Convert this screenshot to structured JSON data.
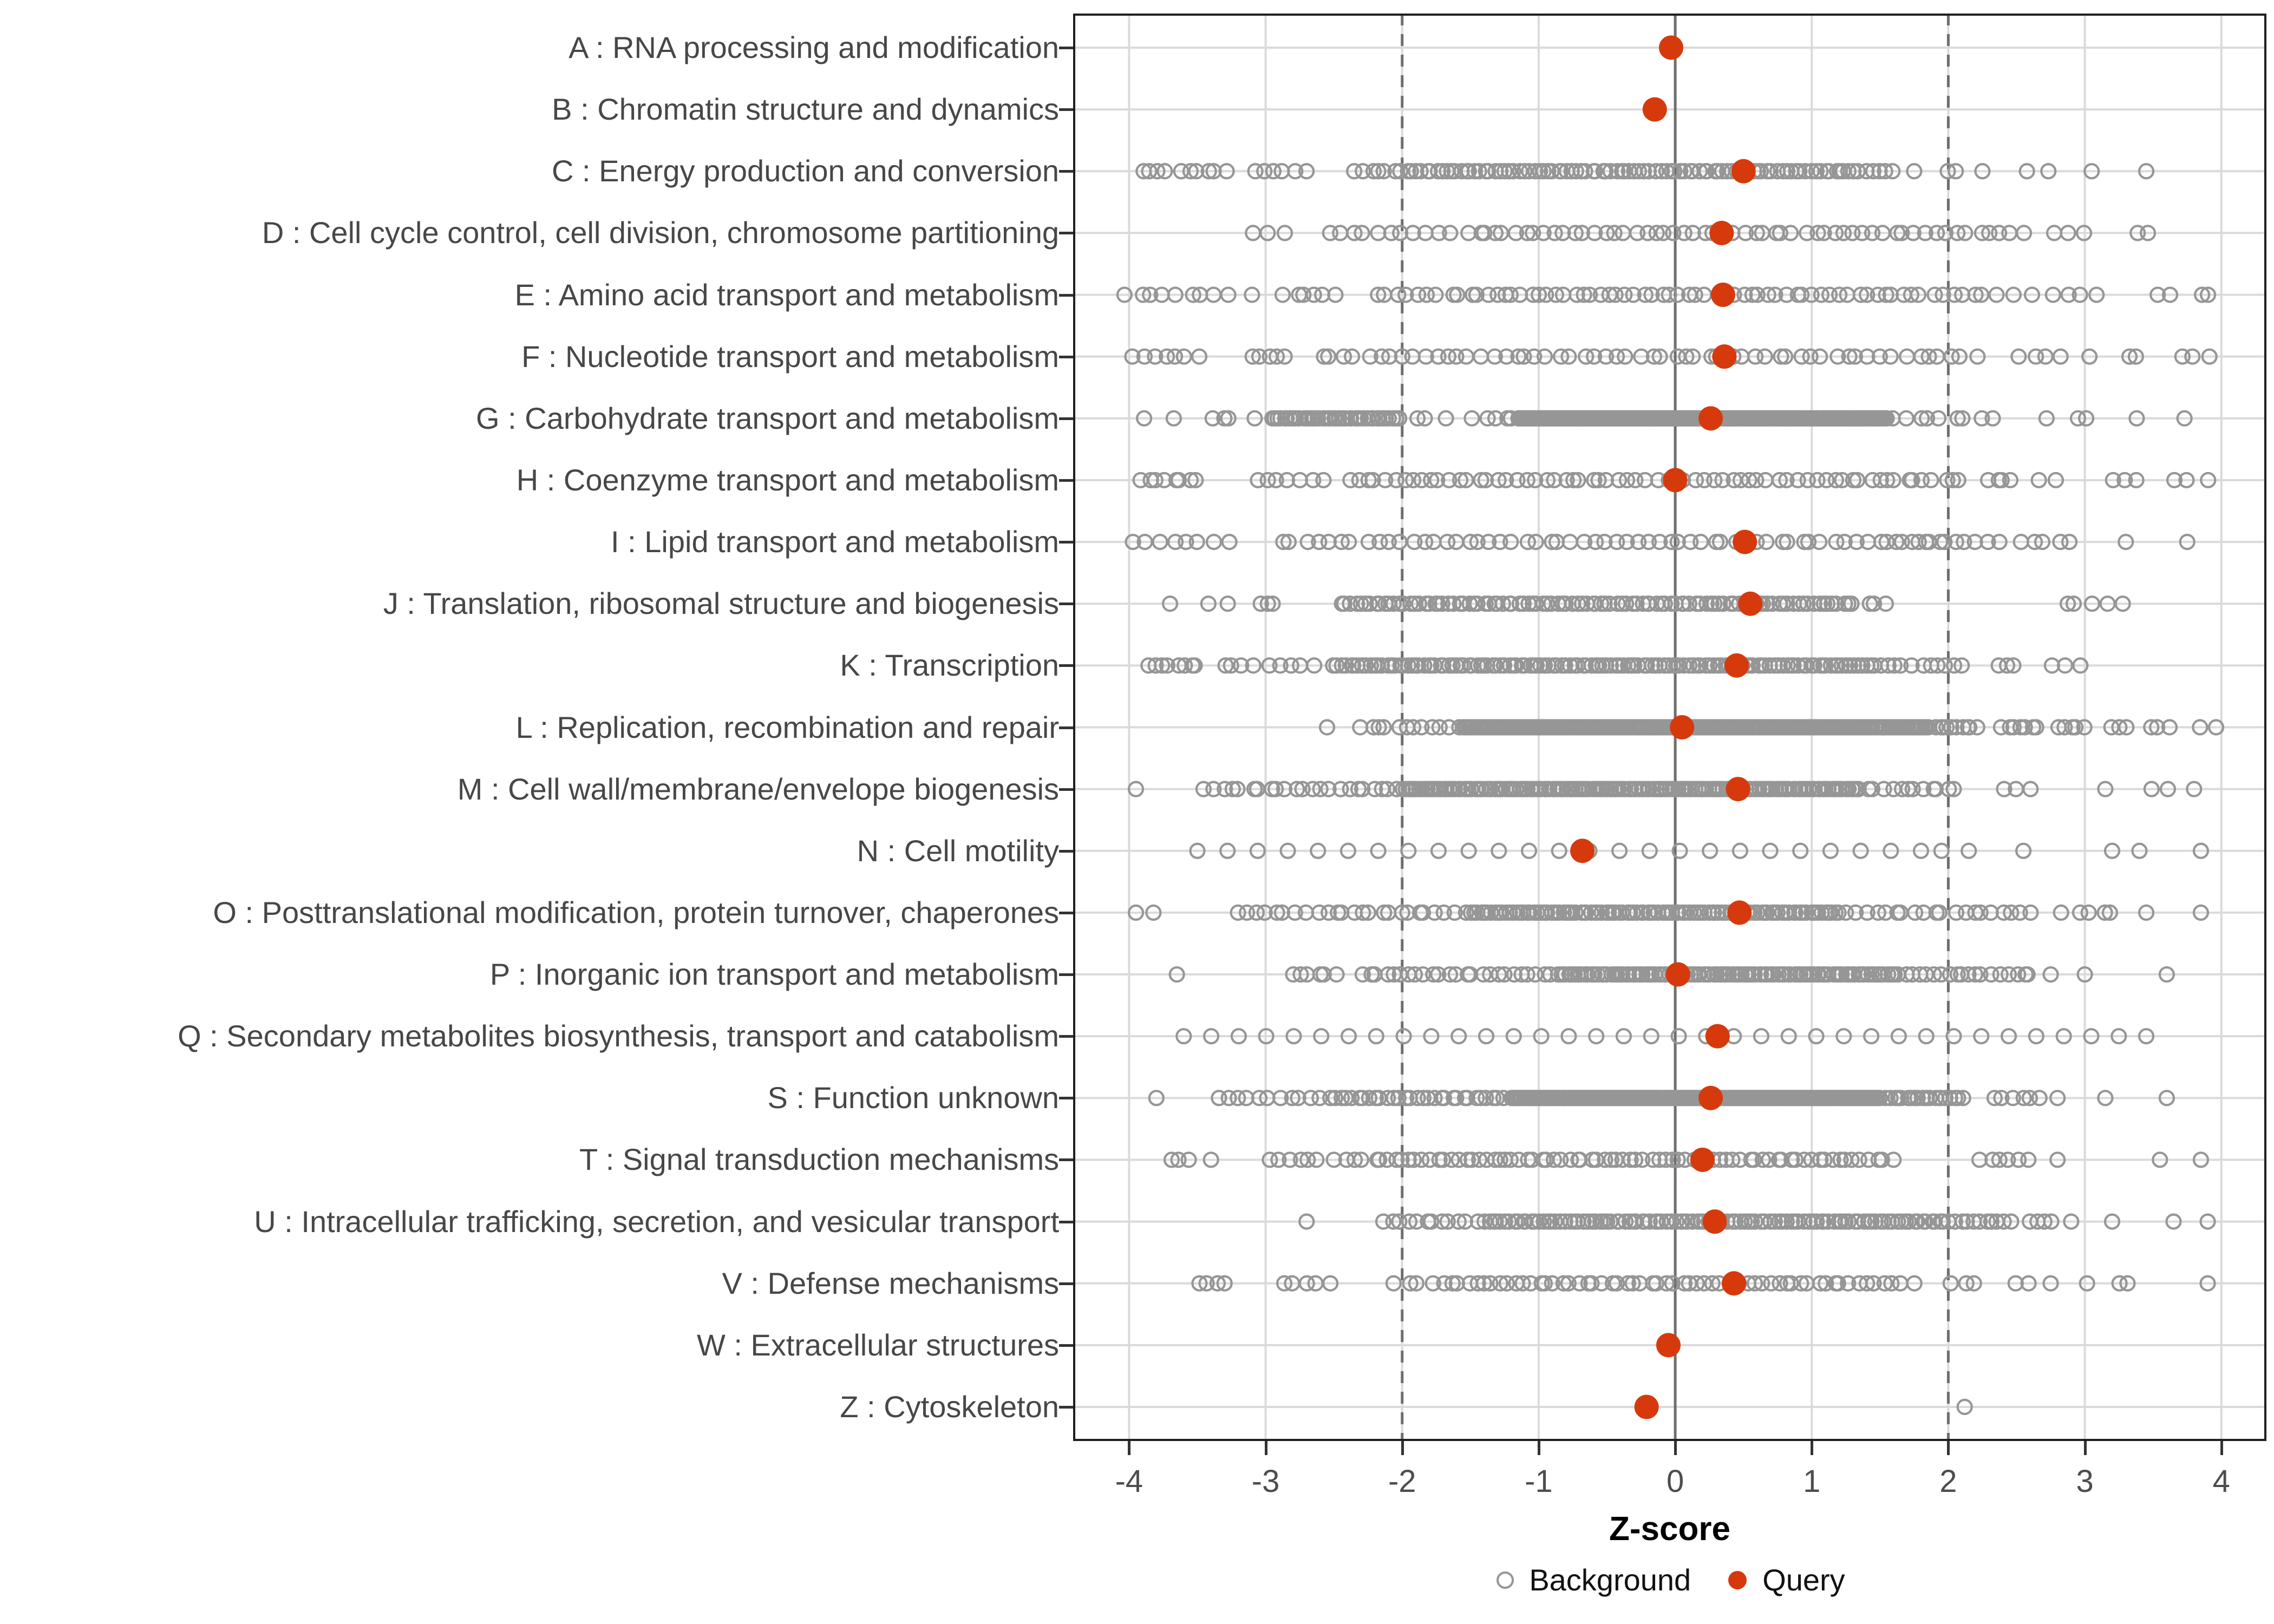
{
  "chart_data": {
    "type": "scatter",
    "title": "",
    "xlabel": "Z-score",
    "x_ticks": [
      -4,
      -3,
      -2,
      -1,
      0,
      1,
      2,
      3,
      4
    ],
    "x_domain": [
      -4.41,
      4.33
    ],
    "grid": "major-on",
    "reference_lines": {
      "solid_at": 0,
      "dashed_at": [
        -2,
        2
      ]
    },
    "legend_position": "bottom-center",
    "legend": [
      {
        "label": "Background",
        "marker": "open-circle",
        "color": "#969696"
      },
      {
        "label": "Query",
        "marker": "filled-circle",
        "color": "#D63A0C"
      }
    ],
    "colors": {
      "background_stroke": "#969696",
      "query_fill": "#D63A0C",
      "gridline": "#DADADA",
      "ref_line": "#6E6E6E",
      "panel_border": "#1F1F1F",
      "tick_mark": "#333333",
      "axis_text": "#4D4D4D",
      "category_text": "#474747",
      "axis_title": "#000000",
      "legend_text": "#111111",
      "panel_bg": "#FFFFFF"
    },
    "categories": [
      {
        "code": "A",
        "label": "A : RNA processing and modification",
        "query_z": -0.03,
        "background_segments": []
      },
      {
        "code": "B",
        "label": "B : Chromatin structure and dynamics",
        "query_z": -0.15,
        "background_segments": []
      },
      {
        "code": "C",
        "label": "C : Energy production and conversion",
        "query_z": 0.5,
        "background_segments": [
          [
            -3.92,
            -3.3,
            10
          ],
          [
            -3.1,
            -2.7,
            6
          ],
          [
            -2.35,
            -2.05,
            6
          ],
          [
            -2.0,
            1.35,
            95
          ],
          [
            1.4,
            1.6,
            5
          ],
          [
            1.75,
            1.75,
            1
          ],
          [
            2.0,
            2.05,
            2
          ],
          [
            2.25,
            2.25,
            1
          ],
          [
            2.6,
            2.75,
            2
          ],
          [
            3.05,
            3.05,
            1
          ],
          [
            3.45,
            3.45,
            1
          ]
        ]
      },
      {
        "code": "D",
        "label": "D : Cell cycle control, cell division, chromosome partitioning",
        "query_z": 0.34,
        "background_segments": [
          [
            -3.05,
            -2.85,
            3
          ],
          [
            -2.55,
            -1.45,
            13
          ],
          [
            -1.4,
            1.6,
            42
          ],
          [
            1.65,
            2.55,
            12
          ],
          [
            2.8,
            3.0,
            3
          ],
          [
            3.35,
            3.45,
            2
          ]
        ]
      },
      {
        "code": "E",
        "label": "E : Amino acid transport and metabolism",
        "query_z": 0.35,
        "background_segments": [
          [
            -4.0,
            -3.3,
            9
          ],
          [
            -3.1,
            -3.1,
            1
          ],
          [
            -2.85,
            -2.5,
            6
          ],
          [
            -2.2,
            -1.5,
            10
          ],
          [
            -1.45,
            1.6,
            48
          ],
          [
            1.65,
            2.35,
            10
          ],
          [
            2.5,
            3.1,
            6
          ],
          [
            3.5,
            3.6,
            2
          ],
          [
            3.85,
            3.9,
            2
          ]
        ]
      },
      {
        "code": "F",
        "label": "F : Nucleotide transport and metabolism",
        "query_z": 0.36,
        "background_segments": [
          [
            -3.95,
            -3.5,
            7
          ],
          [
            -3.1,
            -2.85,
            5
          ],
          [
            -2.6,
            1.5,
            50
          ],
          [
            1.6,
            2.2,
            8
          ],
          [
            2.5,
            3.0,
            5
          ],
          [
            3.3,
            3.4,
            2
          ],
          [
            3.7,
            3.9,
            3
          ]
        ]
      },
      {
        "code": "G",
        "label": "G : Carbohydrate transport and metabolism",
        "query_z": 0.26,
        "background_segments": [
          [
            -3.85,
            -3.72,
            2
          ],
          [
            -3.4,
            -3.25,
            3
          ],
          [
            -3.08,
            -3.08,
            1
          ],
          [
            -2.95,
            -2.03,
            42
          ],
          [
            -1.9,
            -1.8,
            2
          ],
          [
            -1.65,
            -1.5,
            2
          ],
          [
            -1.36,
            -1.19,
            4
          ],
          [
            -1.15,
            1.55,
            240
          ],
          [
            1.6,
            2.3,
            9
          ],
          [
            2.76,
            3.03,
            3
          ],
          [
            3.38,
            3.38,
            1
          ],
          [
            3.73,
            3.73,
            1
          ]
        ]
      },
      {
        "code": "H",
        "label": "H : Coenzyme transport and metabolism",
        "query_z": 0.0,
        "background_segments": [
          [
            -3.9,
            -3.5,
            8
          ],
          [
            -3.05,
            -2.6,
            7
          ],
          [
            -2.4,
            1.3,
            55
          ],
          [
            1.35,
            2.1,
            12
          ],
          [
            2.3,
            2.45,
            4
          ],
          [
            2.7,
            2.8,
            2
          ],
          [
            3.2,
            3.35,
            3
          ],
          [
            3.6,
            3.9,
            3
          ]
        ]
      },
      {
        "code": "I",
        "label": "I : Lipid transport and metabolism",
        "query_z": 0.51,
        "background_segments": [
          [
            -3.95,
            -3.3,
            8
          ],
          [
            -2.9,
            -2.0,
            11
          ],
          [
            -1.9,
            1.4,
            42
          ],
          [
            1.5,
            2.1,
            12
          ],
          [
            2.2,
            2.9,
            8
          ],
          [
            3.3,
            3.3,
            1
          ],
          [
            3.75,
            3.75,
            1
          ]
        ]
      },
      {
        "code": "J",
        "label": "J : Translation, ribosomal structure and biogenesis",
        "query_z": 0.55,
        "background_segments": [
          [
            -3.7,
            -3.7,
            1
          ],
          [
            -3.4,
            -3.3,
            2
          ],
          [
            -3.05,
            -2.95,
            3
          ],
          [
            -2.45,
            1.3,
            105
          ],
          [
            1.4,
            1.55,
            3
          ],
          [
            2.85,
            3.3,
            5
          ]
        ]
      },
      {
        "code": "K",
        "label": "K : Transcription",
        "query_z": 0.45,
        "background_segments": [
          [
            -3.85,
            -3.5,
            8
          ],
          [
            -3.3,
            -3.0,
            5
          ],
          [
            -2.9,
            -2.65,
            4
          ],
          [
            -2.5,
            1.5,
            135
          ],
          [
            1.55,
            2.1,
            10
          ],
          [
            2.35,
            2.5,
            3
          ],
          [
            2.75,
            3.0,
            3
          ]
        ]
      },
      {
        "code": "L",
        "label": "L : Replication, recombination and repair",
        "query_z": 0.05,
        "background_segments": [
          [
            -2.55,
            -2.55,
            1
          ],
          [
            -2.3,
            -1.6,
            12
          ],
          [
            -1.55,
            1.85,
            270
          ],
          [
            1.9,
            2.2,
            10
          ],
          [
            2.4,
            2.65,
            7
          ],
          [
            2.8,
            3.0,
            5
          ],
          [
            3.2,
            3.3,
            3
          ],
          [
            3.5,
            3.6,
            3
          ],
          [
            3.85,
            3.95,
            2
          ]
        ]
      },
      {
        "code": "M",
        "label": "M : Cell wall/membrane/envelope biogenesis",
        "query_z": 0.46,
        "background_segments": [
          [
            -3.95,
            -3.95,
            1
          ],
          [
            -3.45,
            -3.2,
            5
          ],
          [
            -3.1,
            -2.55,
            10
          ],
          [
            -2.45,
            -2.05,
            8
          ],
          [
            -2.0,
            1.35,
            165
          ],
          [
            1.4,
            2.05,
            12
          ],
          [
            2.4,
            2.6,
            3
          ],
          [
            3.15,
            3.15,
            1
          ],
          [
            3.5,
            3.6,
            2
          ],
          [
            3.8,
            3.8,
            1
          ]
        ]
      },
      {
        "code": "N",
        "label": "N : Cell motility",
        "query_z": -0.68,
        "background_segments": [
          [
            -3.5,
            1.8,
            25,
            "uniform"
          ],
          [
            1.95,
            1.95,
            1
          ],
          [
            2.15,
            2.15,
            1
          ],
          [
            2.55,
            2.55,
            1
          ],
          [
            3.2,
            3.2,
            1
          ],
          [
            3.4,
            3.4,
            1
          ],
          [
            3.85,
            3.85,
            1
          ]
        ]
      },
      {
        "code": "O",
        "label": "O : Posttranslational modification, protein turnover, chaperones",
        "query_z": 0.47,
        "background_segments": [
          [
            -3.95,
            -3.85,
            2
          ],
          [
            -3.2,
            -2.8,
            7
          ],
          [
            -2.7,
            -1.55,
            18
          ],
          [
            -1.5,
            1.2,
            105
          ],
          [
            1.25,
            2.6,
            20
          ],
          [
            2.85,
            3.2,
            5
          ],
          [
            3.45,
            3.45,
            1
          ],
          [
            3.85,
            3.85,
            1
          ]
        ]
      },
      {
        "code": "P",
        "label": "P : Inorganic ion transport and metabolism",
        "query_z": 0.02,
        "background_segments": [
          [
            -3.65,
            -3.65,
            1
          ],
          [
            -2.8,
            -2.5,
            6
          ],
          [
            -2.3,
            -0.9,
            25
          ],
          [
            -0.85,
            1.6,
            105
          ],
          [
            1.65,
            2.3,
            14
          ],
          [
            2.4,
            2.6,
            5
          ],
          [
            2.75,
            2.75,
            1
          ],
          [
            3.0,
            3.0,
            1
          ],
          [
            3.6,
            3.6,
            1
          ]
        ]
      },
      {
        "code": "Q",
        "label": "Q : Secondary metabolites biosynthesis, transport and catabolism",
        "query_z": 0.31,
        "background_segments": [
          [
            -3.6,
            3.45,
            36,
            "uniform"
          ]
        ]
      },
      {
        "code": "S",
        "label": "S : Function unknown",
        "query_z": 0.26,
        "background_segments": [
          [
            -3.8,
            -3.8,
            1
          ],
          [
            -3.35,
            -3.0,
            6
          ],
          [
            -2.9,
            -2.55,
            6
          ],
          [
            -2.5,
            -1.25,
            30
          ],
          [
            -1.2,
            1.5,
            240
          ],
          [
            1.55,
            2.1,
            20
          ],
          [
            2.35,
            2.65,
            6
          ],
          [
            2.8,
            2.8,
            1
          ],
          [
            3.15,
            3.15,
            1
          ],
          [
            3.6,
            3.6,
            1
          ]
        ]
      },
      {
        "code": "T",
        "label": "T : Signal transduction mechanisms",
        "query_z": 0.2,
        "background_segments": [
          [
            -3.7,
            -3.55,
            3
          ],
          [
            -3.4,
            -3.4,
            1
          ],
          [
            -3.0,
            -2.6,
            6
          ],
          [
            -2.5,
            -2.3,
            4
          ],
          [
            -2.2,
            1.3,
            70
          ],
          [
            1.35,
            1.6,
            5
          ],
          [
            2.25,
            2.6,
            6
          ],
          [
            2.8,
            2.8,
            1
          ],
          [
            3.55,
            3.55,
            1
          ],
          [
            3.85,
            3.85,
            1
          ]
        ]
      },
      {
        "code": "U",
        "label": "U : Intracellular trafficking, secretion, and vesicular transport",
        "query_z": 0.29,
        "background_segments": [
          [
            -2.7,
            -2.7,
            1
          ],
          [
            -2.15,
            -1.45,
            12
          ],
          [
            -1.4,
            2.0,
            110
          ],
          [
            2.05,
            2.45,
            10
          ],
          [
            2.6,
            2.75,
            4
          ],
          [
            2.9,
            2.9,
            1
          ],
          [
            3.2,
            3.2,
            1
          ],
          [
            3.65,
            3.65,
            1
          ],
          [
            3.9,
            3.9,
            1
          ]
        ]
      },
      {
        "code": "V",
        "label": "V : Defense mechanisms",
        "query_z": 0.43,
        "background_segments": [
          [
            -3.5,
            -3.3,
            4
          ],
          [
            -2.85,
            -2.55,
            5
          ],
          [
            -2.05,
            -1.8,
            4
          ],
          [
            -1.7,
            1.45,
            55
          ],
          [
            1.5,
            1.75,
            4
          ],
          [
            2.0,
            2.2,
            3
          ],
          [
            2.5,
            2.6,
            2
          ],
          [
            2.75,
            2.75,
            1
          ],
          [
            3.05,
            3.35,
            3
          ],
          [
            3.9,
            3.9,
            1
          ]
        ]
      },
      {
        "code": "W",
        "label": "W : Extracellular structures",
        "query_z": -0.05,
        "background_segments": []
      },
      {
        "code": "Z",
        "label": "Z : Cytoskeleton",
        "query_z": -0.21,
        "background_segments": [
          [
            2.12,
            2.12,
            1
          ]
        ]
      }
    ]
  }
}
